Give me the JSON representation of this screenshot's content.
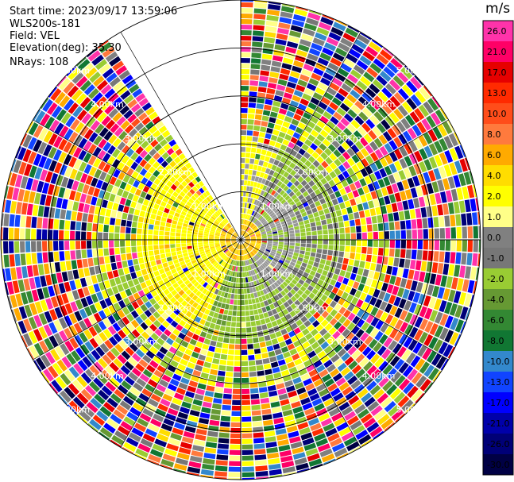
{
  "header": {
    "start_time": "Start time: 2023/09/17 13:59:06",
    "instrument": "WLS200s-181",
    "field": "Field: VEL",
    "elevation": "Elevation(deg): 35.30",
    "nrays": "NRays: 108"
  },
  "chart_data": {
    "type": "heatmap",
    "title": "",
    "projection": "polar-ppi",
    "field": "VEL",
    "units": "m/s",
    "range_rings_labels": [
      "1.00km",
      "2.00km",
      "3.00km",
      "4.00km",
      "5.00km"
    ],
    "colorbar": {
      "label": "m/s",
      "ticks": [
        "26.0",
        "21.0",
        "17.0",
        "13.0",
        "10.0",
        "8.0",
        "6.0",
        "4.0",
        "2.0",
        "1.0",
        "0.0",
        "-1.0",
        "-2.0",
        "-4.0",
        "-6.0",
        "-8.0",
        "-10.0",
        "-13.0",
        "-17.0",
        "-21.0",
        "-26.0",
        "-30.0"
      ],
      "colors": [
        "#ff33aa",
        "#ff0066",
        "#e60000",
        "#ff2a00",
        "#ff4d1a",
        "#ff7a3d",
        "#ffaa00",
        "#ffdd00",
        "#ffff00",
        "#ffff88",
        "#808080",
        "#777777",
        "#99cc33",
        "#669933",
        "#338833",
        "#117733",
        "#3388cc",
        "#1144ff",
        "#0000ff",
        "#0000aa",
        "#000077",
        "#000044"
      ]
    }
  }
}
